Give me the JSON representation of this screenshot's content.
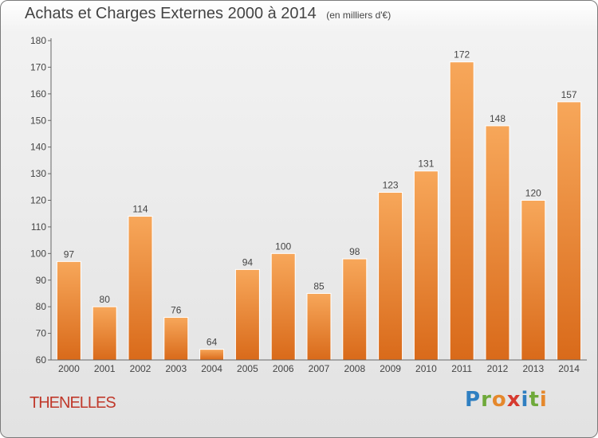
{
  "title": "Achats et Charges Externes 2000 à 2014",
  "unit_note": "(en milliers d'€)",
  "commune": "THENELLES",
  "brand": {
    "letters": [
      "P",
      "r",
      "o",
      "x",
      "i",
      "t",
      "i"
    ],
    "colors": [
      "#2f7fc1",
      "#6fa93a",
      "#e5882c",
      "#d63a2f",
      "#2f7fc1",
      "#6fa93a",
      "#e5882c"
    ]
  },
  "colors": {
    "bar_light": "#f7a75a",
    "bar_dark": "#d96a1a",
    "commune": "#c0392b",
    "text": "#444444"
  },
  "chart_data": {
    "type": "bar",
    "categories": [
      "2000",
      "2001",
      "2002",
      "2003",
      "2004",
      "2005",
      "2006",
      "2007",
      "2008",
      "2009",
      "2010",
      "2011",
      "2012",
      "2013",
      "2014"
    ],
    "values": [
      97,
      80,
      114,
      76,
      64,
      94,
      100,
      85,
      98,
      123,
      131,
      172,
      148,
      120,
      157
    ],
    "ylim": [
      60,
      180
    ],
    "yticks": [
      60,
      70,
      80,
      90,
      100,
      110,
      120,
      130,
      140,
      150,
      160,
      170,
      180
    ],
    "grid": false,
    "data_labels": true
  }
}
